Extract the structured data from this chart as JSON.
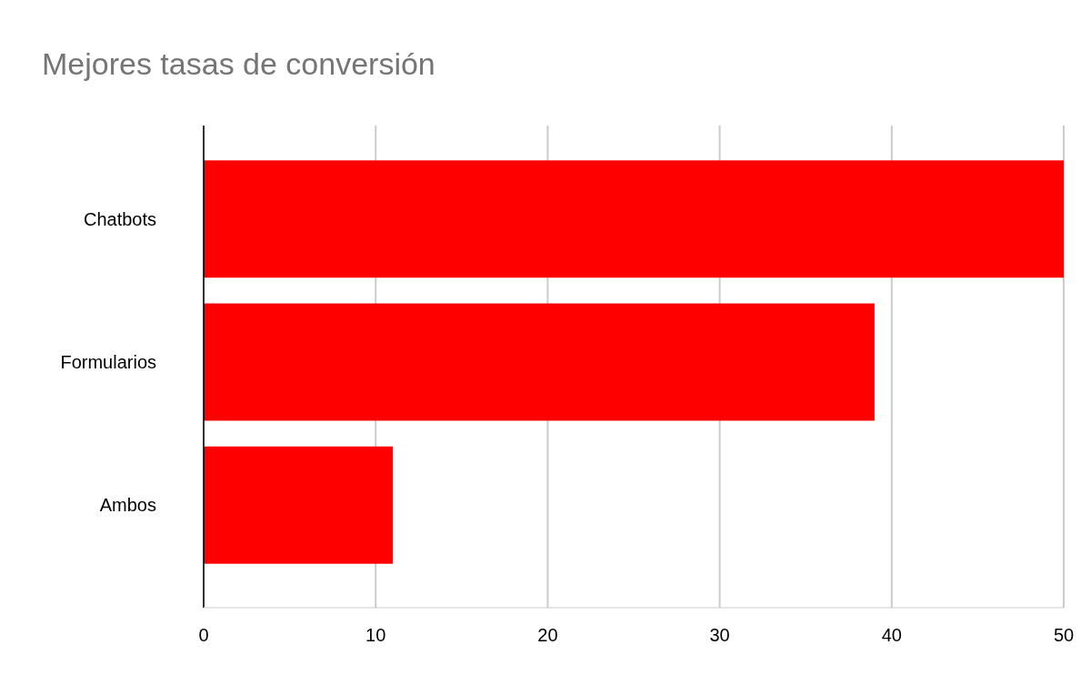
{
  "chart_data": {
    "type": "bar",
    "orientation": "horizontal",
    "title": "Mejores tasas de conversión",
    "categories": [
      "Chatbots",
      "Formularios",
      "Ambos"
    ],
    "values": [
      50,
      39,
      11
    ],
    "color": "#ff0000",
    "xlim": [
      0,
      50
    ],
    "xticks": [
      0,
      10,
      20,
      30,
      40,
      50
    ],
    "grid": "x"
  }
}
